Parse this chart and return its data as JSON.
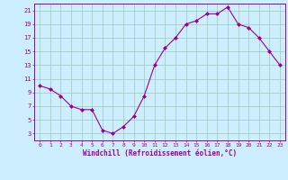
{
  "x": [
    0,
    1,
    2,
    3,
    4,
    5,
    6,
    7,
    8,
    9,
    10,
    11,
    12,
    13,
    14,
    15,
    16,
    17,
    18,
    19,
    20,
    21,
    22,
    23
  ],
  "y": [
    10,
    9.5,
    8.5,
    7,
    6.5,
    6.5,
    3.5,
    3,
    4,
    5.5,
    8.5,
    13,
    15.5,
    17,
    19,
    19.5,
    20.5,
    20.5,
    21.5,
    19,
    18.5,
    17,
    15,
    13
  ],
  "xlabel": "Windchill (Refroidissement éolien,°C)",
  "line_color": "#990099",
  "marker_color": "#990099",
  "bg_color": "#cceeff",
  "grid_color": "#99ccbb",
  "ylim": [
    2,
    22
  ],
  "xlim": [
    -0.5,
    23.5
  ],
  "yticks": [
    3,
    5,
    7,
    9,
    11,
    13,
    15,
    17,
    19,
    21
  ],
  "xticks": [
    0,
    1,
    2,
    3,
    4,
    5,
    6,
    7,
    8,
    9,
    10,
    11,
    12,
    13,
    14,
    15,
    16,
    17,
    18,
    19,
    20,
    21,
    22,
    23
  ]
}
